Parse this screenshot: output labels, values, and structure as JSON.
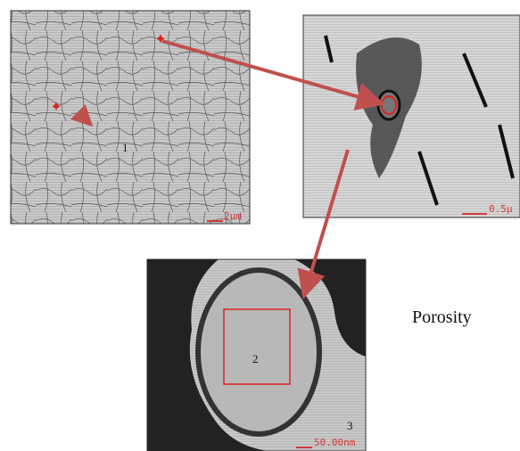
{
  "panels": [
    {
      "label": "1",
      "scale_label": "2μm"
    },
    {
      "scale_label": "0.5μ"
    },
    {
      "region_label": "2",
      "label": "3",
      "scale_label": "50.00nm"
    }
  ],
  "caption": "Porosity"
}
